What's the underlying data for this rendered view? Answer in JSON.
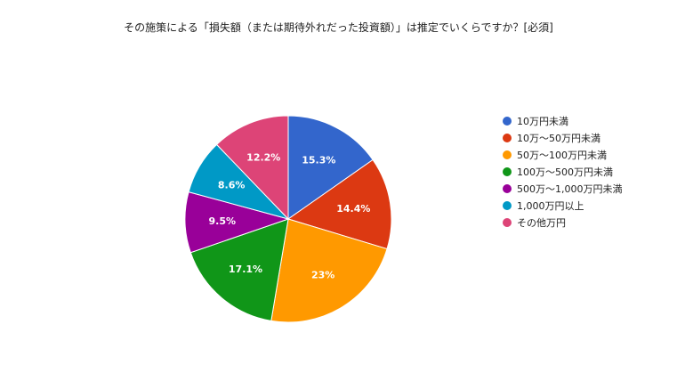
{
  "chart_data": {
    "type": "pie",
    "title": "その施策による「損失額（または期待外れだった投資額）」は推定でいくらですか？[必須]",
    "categories": [
      "10万円未満",
      "10万〜50万円未満",
      "50万〜100万円未満",
      "100万〜500万円未満",
      "500万〜1,000万円未満",
      "1,000万円以上",
      "その他万円"
    ],
    "values": [
      15.3,
      14.4,
      23.0,
      17.1,
      9.5,
      8.6,
      12.2
    ],
    "labels": [
      "15.3%",
      "14.4%",
      "23%",
      "17.1%",
      "9.5%",
      "8.6%",
      "12.2%"
    ],
    "colors": [
      "#3366cc",
      "#dc3912",
      "#ff9900",
      "#109618",
      "#990099",
      "#0099c6",
      "#dd4477"
    ],
    "legend_position": "right",
    "start": "top, clockwise"
  }
}
